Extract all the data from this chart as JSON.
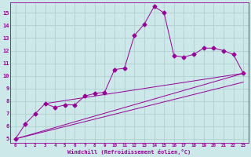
{
  "xlabel": "Windchill (Refroidissement éolien,°C)",
  "bg_color": "#cce8e8",
  "grid_color": "#aacccc",
  "line_color": "#990099",
  "xlim": [
    -0.5,
    23.5
  ],
  "ylim": [
    4.7,
    15.8
  ],
  "yticks": [
    5,
    6,
    7,
    8,
    9,
    10,
    11,
    12,
    13,
    14,
    15
  ],
  "xticks": [
    0,
    1,
    2,
    3,
    4,
    5,
    6,
    7,
    8,
    9,
    10,
    11,
    12,
    13,
    14,
    15,
    16,
    17,
    18,
    19,
    20,
    21,
    22,
    23
  ],
  "series1_x": [
    0,
    1,
    2,
    3,
    4,
    5,
    6,
    7,
    8,
    9,
    10,
    11,
    12,
    13,
    14,
    15,
    16,
    17,
    18,
    19,
    20,
    21,
    22,
    23
  ],
  "series1_y": [
    5.0,
    6.2,
    7.0,
    7.8,
    7.5,
    7.7,
    7.7,
    8.4,
    8.6,
    8.7,
    10.5,
    10.6,
    13.2,
    14.1,
    15.5,
    15.0,
    11.6,
    11.5,
    11.7,
    12.2,
    12.2,
    12.0,
    11.7,
    10.2
  ],
  "series2_x": [
    0,
    23
  ],
  "series2_y": [
    5.0,
    10.2
  ],
  "series3_x": [
    3,
    23
  ],
  "series3_y": [
    7.8,
    10.2
  ],
  "series4_x": [
    0,
    23
  ],
  "series4_y": [
    5.0,
    9.5
  ]
}
